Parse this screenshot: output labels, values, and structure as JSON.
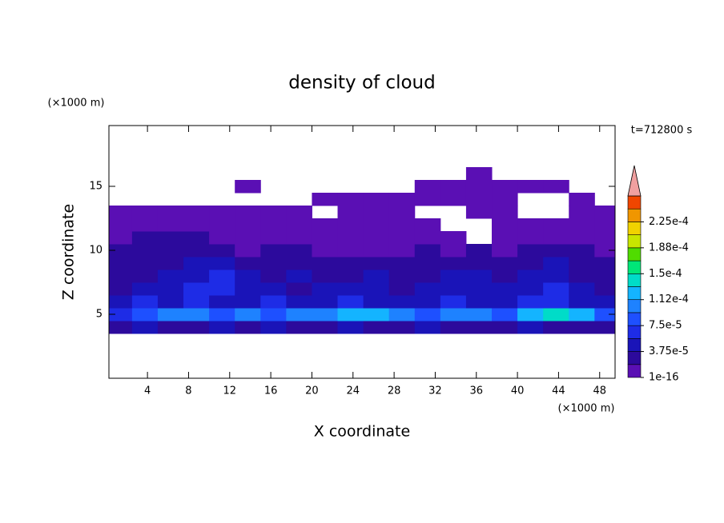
{
  "chart_data": {
    "type": "contour",
    "title": "density of cloud",
    "xlabel": "X coordinate",
    "ylabel": "Z coordinate",
    "xunit": "(×1000 m)",
    "yunit": "(×1000 m)",
    "annotation": "t=712800 s",
    "xlim": [
      0.25,
      49.5
    ],
    "ylim": [
      0,
      19.75
    ],
    "xticks": [
      4,
      8,
      12,
      16,
      20,
      24,
      28,
      32,
      36,
      40,
      44,
      48
    ],
    "yticks": [
      5,
      10,
      15
    ],
    "x": [
      1.25,
      3.75,
      6.25,
      8.75,
      11.25,
      13.75,
      16.25,
      18.75,
      21.25,
      23.75,
      26.25,
      28.75,
      31.25,
      33.75,
      36.25,
      38.75,
      41.25,
      43.75,
      46.25,
      48.75
    ],
    "y": [
      4,
      5,
      6,
      7,
      8,
      9,
      10,
      11,
      12,
      13,
      14,
      15,
      16
    ],
    "z": [
      [
        2.5e-05,
        4.5e-05,
        2.5e-05,
        2.5e-05,
        4.5e-05,
        2.5e-05,
        4.5e-05,
        2.5e-05,
        2.5e-05,
        4.5e-05,
        2.5e-05,
        2.5e-05,
        4.5e-05,
        2.5e-05,
        2.5e-05,
        2.5e-05,
        4.5e-05,
        2.5e-05,
        2.5e-05,
        2.5e-05
      ],
      [
        6.5e-05,
        8.5e-05,
        0.000105,
        0.000105,
        8.5e-05,
        0.000105,
        8.5e-05,
        0.000105,
        0.000105,
        0.00012,
        0.00012,
        0.000105,
        8.5e-05,
        0.000105,
        0.000105,
        8.5e-05,
        0.00012,
        0.000135,
        0.00012,
        8.5e-05
      ],
      [
        4.5e-05,
        6.5e-05,
        4.5e-05,
        6.5e-05,
        4.5e-05,
        4.5e-05,
        6.5e-05,
        4.5e-05,
        4.5e-05,
        6.5e-05,
        4.5e-05,
        4.5e-05,
        4.5e-05,
        6.5e-05,
        4.5e-05,
        4.5e-05,
        6.5e-05,
        6.5e-05,
        4.5e-05,
        4.5e-05
      ],
      [
        2.5e-05,
        4.5e-05,
        4.5e-05,
        6.5e-05,
        6.5e-05,
        4.5e-05,
        4.5e-05,
        2.5e-05,
        4.5e-05,
        4.5e-05,
        4.5e-05,
        2.5e-05,
        4.5e-05,
        4.5e-05,
        4.5e-05,
        4.5e-05,
        4.5e-05,
        6.5e-05,
        4.5e-05,
        2.5e-05
      ],
      [
        2.5e-05,
        2.5e-05,
        4.5e-05,
        4.5e-05,
        6.5e-05,
        4.5e-05,
        2.5e-05,
        4.5e-05,
        2.5e-05,
        2.5e-05,
        4.5e-05,
        2.5e-05,
        2.5e-05,
        4.5e-05,
        4.5e-05,
        2.5e-05,
        4.5e-05,
        4.5e-05,
        2.5e-05,
        2.5e-05
      ],
      [
        2.5e-05,
        2.5e-05,
        2.5e-05,
        4.5e-05,
        4.5e-05,
        2.5e-05,
        2.5e-05,
        2.5e-05,
        2.5e-05,
        2.5e-05,
        2.5e-05,
        2.5e-05,
        2.5e-05,
        2.5e-05,
        2.5e-05,
        2.5e-05,
        2.5e-05,
        4.5e-05,
        2.5e-05,
        2.5e-05
      ],
      [
        2.5e-05,
        2.5e-05,
        2.5e-05,
        2.5e-05,
        2.5e-05,
        1e-06,
        2.5e-05,
        2.5e-05,
        1e-06,
        1e-06,
        1e-06,
        1e-06,
        2.5e-05,
        1e-06,
        2.5e-05,
        1e-06,
        2.5e-05,
        2.5e-05,
        2.5e-05,
        1e-06
      ],
      [
        1e-06,
        2.5e-05,
        2.5e-05,
        2.5e-05,
        1e-06,
        1e-06,
        1e-06,
        1e-06,
        1e-06,
        1e-06,
        1e-06,
        1e-06,
        1e-06,
        1e-06,
        null,
        1e-06,
        1e-06,
        1e-06,
        1e-06,
        1e-06
      ],
      [
        1e-06,
        1e-06,
        1e-06,
        1e-06,
        1e-06,
        1e-06,
        1e-06,
        1e-06,
        1e-06,
        1e-06,
        1e-06,
        1e-06,
        1e-06,
        null,
        null,
        1e-06,
        1e-06,
        1e-06,
        1e-06,
        1e-06
      ],
      [
        1e-06,
        1e-06,
        1e-06,
        1e-06,
        1e-06,
        1e-06,
        1e-06,
        1e-06,
        null,
        1e-06,
        1e-06,
        1e-06,
        null,
        null,
        1e-06,
        1e-06,
        null,
        null,
        1e-06,
        1e-06
      ],
      [
        null,
        null,
        null,
        null,
        null,
        null,
        null,
        null,
        1e-06,
        1e-06,
        1e-06,
        1e-06,
        1e-06,
        1e-06,
        1e-06,
        1e-06,
        null,
        null,
        1e-06,
        null
      ],
      [
        null,
        null,
        null,
        null,
        null,
        1e-06,
        null,
        null,
        null,
        null,
        null,
        null,
        1e-06,
        1e-06,
        1e-06,
        1e-06,
        1e-06,
        1e-06,
        null,
        null
      ],
      [
        null,
        null,
        null,
        null,
        null,
        null,
        null,
        null,
        null,
        null,
        null,
        null,
        null,
        null,
        1e-06,
        null,
        null,
        null,
        null,
        null
      ]
    ],
    "levels": [
      1e-16,
      1.875e-05,
      3.75e-05,
      5.625e-05,
      7.5e-05,
      9.375e-05,
      0.0001125,
      0.00013125,
      0.00015,
      0.00016875,
      0.0001875,
      0.00020625,
      0.000225,
      0.00024375
    ],
    "colors": [
      "#5a0fb4",
      "#2c0a9c",
      "#1a14b8",
      "#1e2ce6",
      "#1e50ff",
      "#1e82ff",
      "#14b4ff",
      "#00dcc8",
      "#00e678",
      "#50dc00",
      "#c8e600",
      "#f0d200",
      "#f09600",
      "#f04600"
    ],
    "over_color": "#f0a0a0",
    "clim": [
      1e-16,
      0.0002625
    ],
    "cbar_ticks": [
      {
        "value": 1e-16,
        "label": "1e-16"
      },
      {
        "value": 3.75e-05,
        "label": "3.75e-5"
      },
      {
        "value": 7.5e-05,
        "label": "7.5e-5"
      },
      {
        "value": 0.0001125,
        "label": "1.12e-4"
      },
      {
        "value": 0.00015,
        "label": "1.5e-4"
      },
      {
        "value": 0.0001875,
        "label": "1.88e-4"
      },
      {
        "value": 0.000225,
        "label": "2.25e-4"
      }
    ]
  }
}
